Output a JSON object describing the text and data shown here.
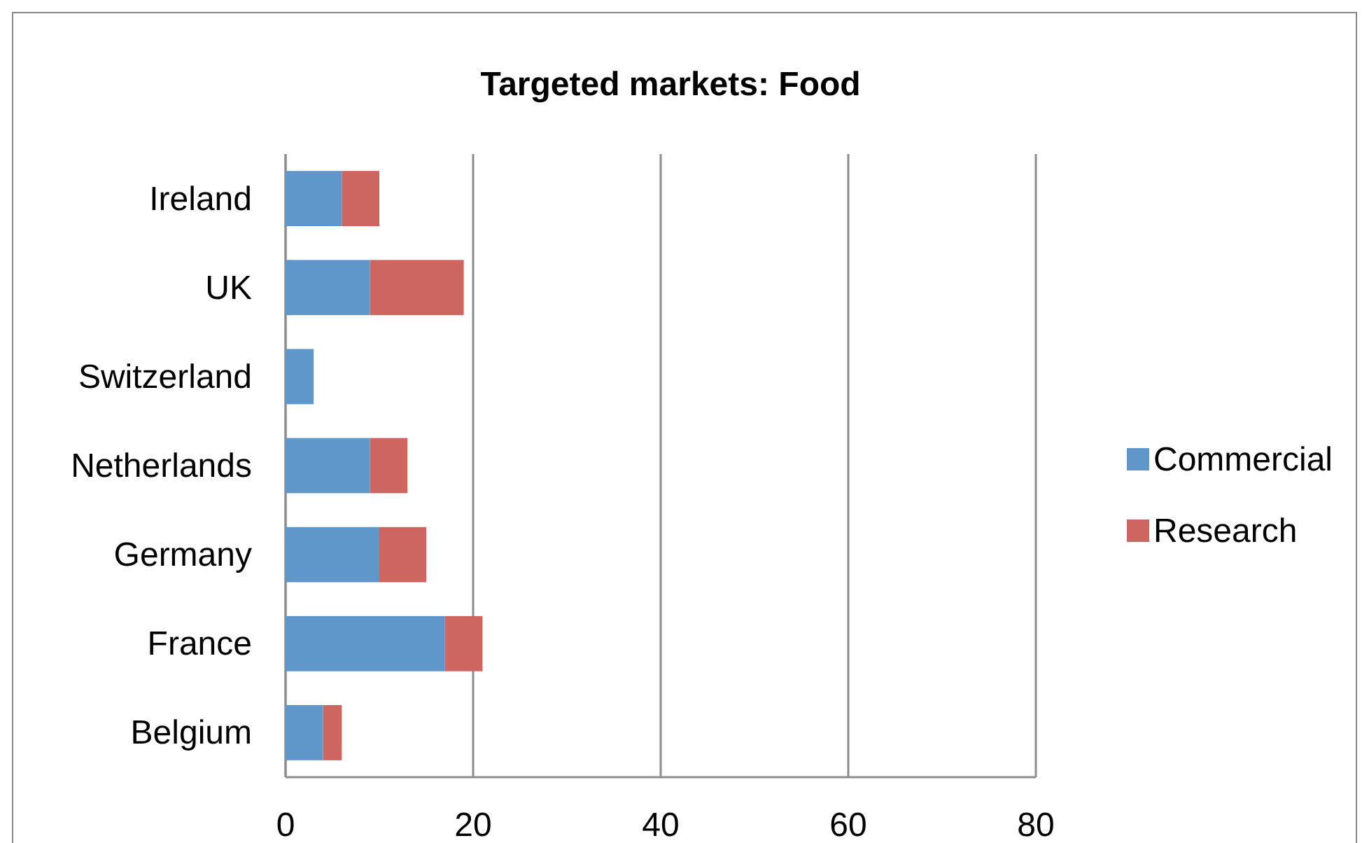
{
  "chart_data": {
    "type": "bar",
    "title": "Targeted markets: Food",
    "orientation": "horizontal",
    "stacked": true,
    "categories": [
      "Ireland",
      "UK",
      "Switzerland",
      "Netherlands",
      "Germany",
      "France",
      "Belgium"
    ],
    "series": [
      {
        "name": "Commercial",
        "color": "#6097cb",
        "values": [
          6,
          9,
          3,
          9,
          10,
          17,
          4
        ]
      },
      {
        "name": "Research",
        "color": "#cd6660",
        "values": [
          4,
          10,
          0,
          4,
          5,
          4,
          2
        ]
      }
    ],
    "xlim": [
      0,
      80
    ],
    "xticks": [
      0,
      20,
      40,
      60,
      80
    ],
    "grid": "x",
    "legend": "right"
  }
}
